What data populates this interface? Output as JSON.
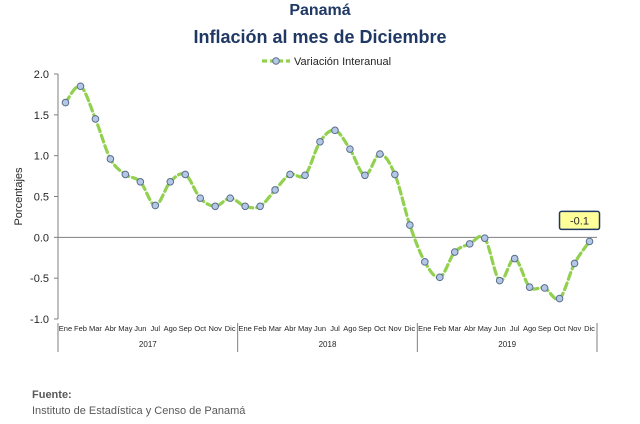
{
  "header": {
    "country": "Panamá",
    "subtitle": "Inflación al mes de Diciembre"
  },
  "source": {
    "label": "Fuente:",
    "text": "Instituto de Estadística y Censo de Panamá"
  },
  "colors": {
    "line": "#92d050",
    "marker_fill": "#b4c7e7",
    "marker_stroke": "#5a6e8a",
    "title": "#1f3864",
    "callout_fill": "#ffff99",
    "callout_border": "#1f3864"
  },
  "chart_data": {
    "type": "line",
    "title": "Inflación al mes de Diciembre",
    "ylabel": "Porcentajes",
    "xlabel": "",
    "ylim": [
      -1.0,
      2.0
    ],
    "yticks": [
      "2.0",
      "1.5",
      "1.0",
      "0.5",
      "0.0",
      "-0.5",
      "-1.0"
    ],
    "ytick_values": [
      2.0,
      1.5,
      1.0,
      0.5,
      0.0,
      -0.5,
      -1.0
    ],
    "legend_position": "top-center",
    "grid": false,
    "categories": [
      "Ene",
      "Feb",
      "Mar",
      "Abr",
      "May",
      "Jun",
      "Jul",
      "Ago",
      "Sep",
      "Oct",
      "Nov",
      "Dic",
      "Ene",
      "Feb",
      "Mar",
      "Abr",
      "May",
      "Jun",
      "Jul",
      "Ago",
      "Sep",
      "Oct",
      "Nov",
      "Dic",
      "Ene",
      "Feb",
      "Mar",
      "Abr",
      "May",
      "Jun",
      "Jul",
      "Ago",
      "Sep",
      "Oct",
      "Nov",
      "Dic"
    ],
    "groups": [
      {
        "label": "2017",
        "count": 12
      },
      {
        "label": "2018",
        "count": 12
      },
      {
        "label": "2019",
        "count": 12
      }
    ],
    "series": [
      {
        "name": "Variación Interanual",
        "values": [
          1.65,
          1.85,
          1.45,
          0.96,
          0.77,
          0.68,
          0.39,
          0.68,
          0.77,
          0.48,
          0.38,
          0.48,
          0.38,
          0.38,
          0.58,
          0.77,
          0.76,
          1.17,
          1.31,
          1.08,
          0.76,
          1.02,
          0.77,
          0.15,
          -0.3,
          -0.49,
          -0.18,
          -0.08,
          -0.01,
          -0.53,
          -0.26,
          -0.61,
          -0.62,
          -0.75,
          -0.32,
          -0.05
        ]
      }
    ],
    "annotation": {
      "text": "-0.1",
      "index": 35
    }
  }
}
